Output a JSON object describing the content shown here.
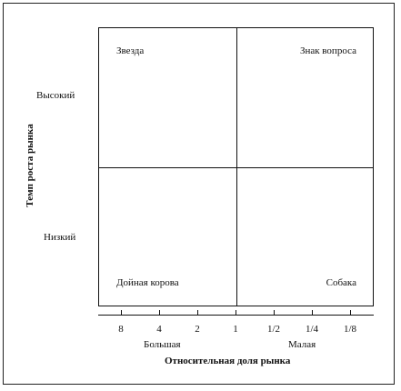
{
  "quadrants": {
    "top_left": "Звезда",
    "top_right": "Знак вопроса",
    "bottom_left": "Дойная корова",
    "bottom_right": "Собака"
  },
  "y_axis": {
    "title": "Темп роста рынка",
    "high": "Высокий",
    "low": "Низкий"
  },
  "x_axis": {
    "ticks": [
      "8",
      "4",
      "2",
      "1",
      "1/2",
      "1/4",
      "1/8"
    ],
    "large": "Большая",
    "small": "Малая",
    "title": "Относительная доля рынка"
  }
}
